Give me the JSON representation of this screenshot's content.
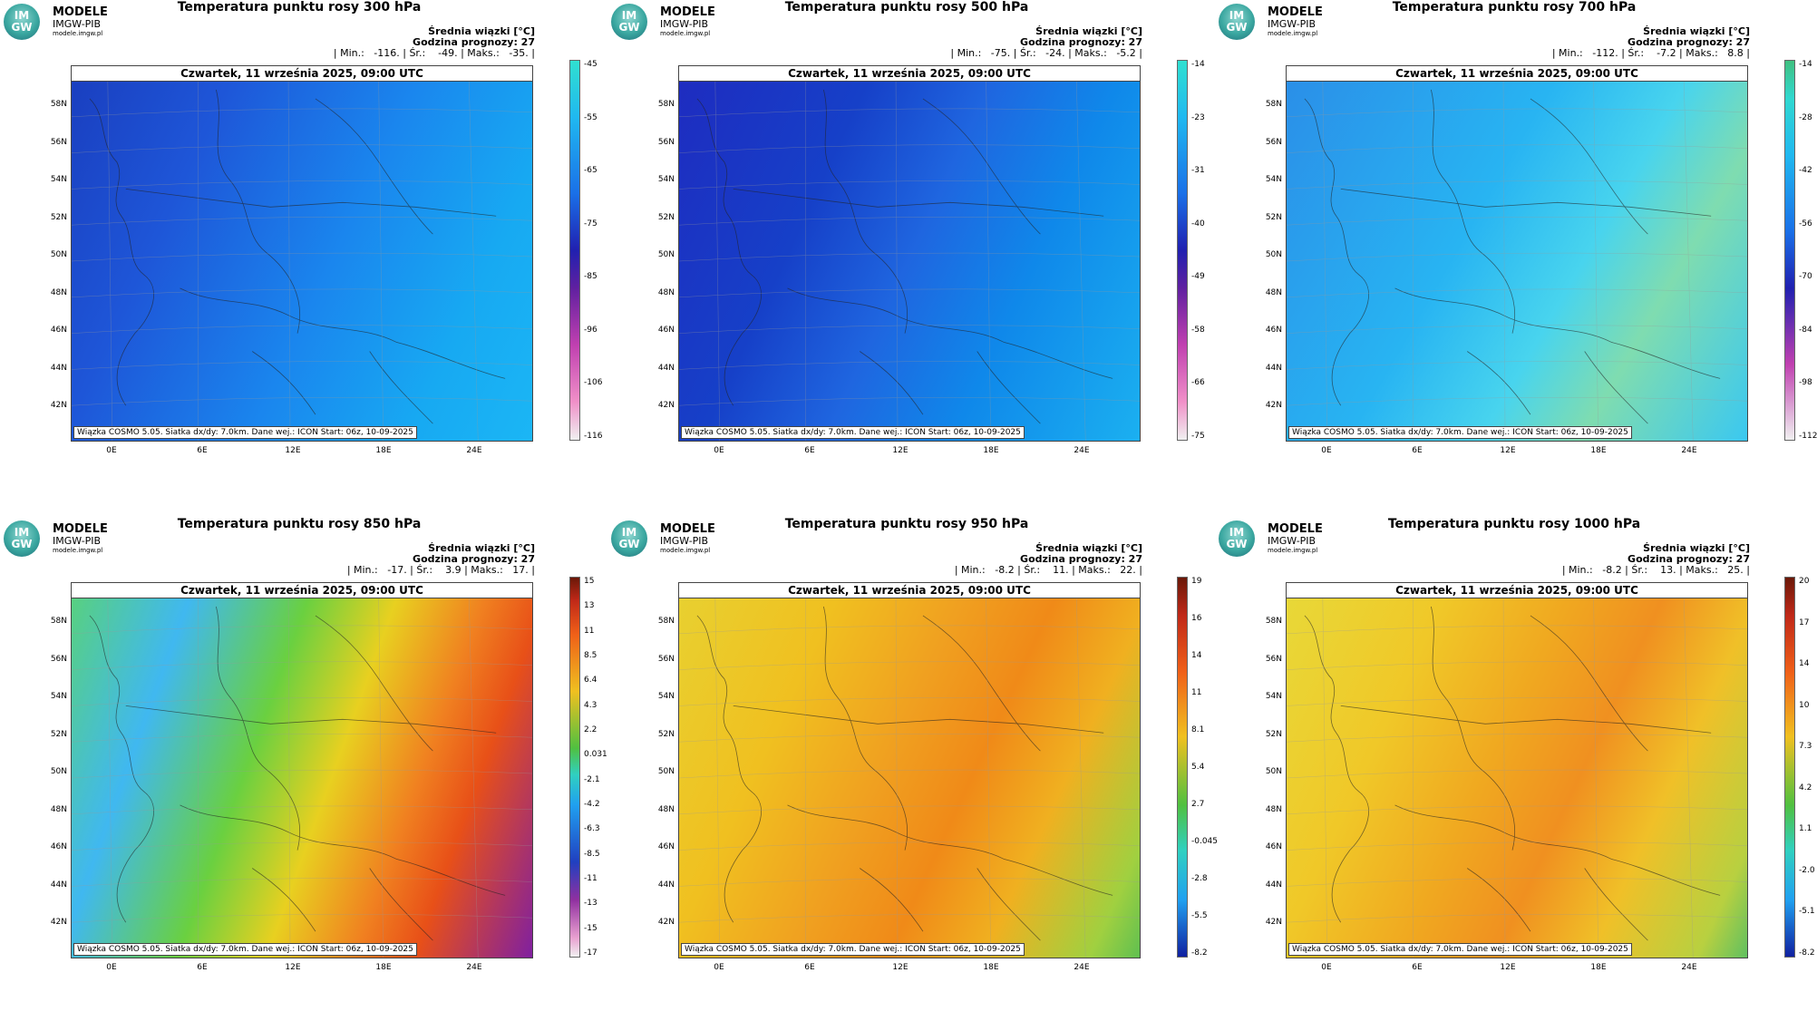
{
  "logo": {
    "mark_line1": "IM",
    "mark_line2": "GW",
    "name": "MODELE",
    "org": "IMGW-PIB",
    "url": "modele.imgw.pl"
  },
  "common": {
    "date": "Czwartek, 11 września 2025, 09:00 UTC",
    "avg_label": "Średnia wiązki [°C]",
    "forecast_hour": "Godzina prognozy: 27",
    "footer": "Wiązka COSMO 5.05. Siatka dx/dy: 7.0km. Dane wej.: ICON Start: 06z, 10-09-2025",
    "lat_labels": [
      "58N",
      "56N",
      "54N",
      "52N",
      "50N",
      "48N",
      "46N",
      "44N",
      "42N"
    ],
    "lon_labels": [
      "0E",
      "6E",
      "12E",
      "18E",
      "24E"
    ]
  },
  "panels": [
    {
      "title": "Temperatura punktu rosy 300 hPa",
      "stats": "| Min.:   -116. | Śr.:    -49. | Maks.:   -35. |",
      "scale": [
        "-45",
        "-55",
        "-65",
        "-75",
        "-85",
        "-96",
        "-106",
        "-116"
      ],
      "palette": "cold_deep"
    },
    {
      "title": "Temperatura punktu rosy 500 hPa",
      "stats": "| Min.:   -75. | Śr.:   -24. | Maks.:   -5.2 |",
      "scale": [
        "-14",
        "-23",
        "-31",
        "-40",
        "-49",
        "-58",
        "-66",
        "-75"
      ],
      "palette": "cold_deep2"
    },
    {
      "title": "Temperatura punktu rosy 700 hPa",
      "stats": "| Min.:   -112. | Śr.:    -7.2 | Maks.:   8.8 |",
      "scale": [
        "-14",
        "-28",
        "-42",
        "-56",
        "-70",
        "-84",
        "-98",
        "-112"
      ],
      "palette": "cold_light"
    },
    {
      "title": "Temperatura punktu rosy 850 hPa",
      "stats": "| Min.:   -17. | Śr.:    3.9 | Maks.:   17. |",
      "scale": [
        "15",
        "13",
        "11",
        "8.5",
        "6.4",
        "4.3",
        "2.2",
        "0.031",
        "-2.1",
        "-4.2",
        "-6.3",
        "-8.5",
        "-11",
        "-13",
        "-15",
        "-17"
      ],
      "palette": "mixed"
    },
    {
      "title": "Temperatura punktu rosy 950 hPa",
      "stats": "| Min.:   -8.2 | Śr.:    11. | Maks.:   22. |",
      "scale": [
        "19",
        "16",
        "14",
        "11",
        "8.1",
        "5.4",
        "2.7",
        "-0.045",
        "-2.8",
        "-5.5",
        "-8.2"
      ],
      "palette": "warm"
    },
    {
      "title": "Temperatura punktu rosy 1000 hPa",
      "stats": "| Min.:   -8.2 | Śr.:    13. | Maks.:   25. |",
      "scale": [
        "20",
        "17",
        "14",
        "10",
        "7.3",
        "4.2",
        "1.1",
        "-2.0",
        "-5.1",
        "-8.2"
      ],
      "palette": "warm2"
    }
  ],
  "colors": {
    "cold_deep": "#1d6fe8",
    "cold_light": "#2fb8f0",
    "warm": "#f0a020",
    "mixed": "#40c060"
  }
}
